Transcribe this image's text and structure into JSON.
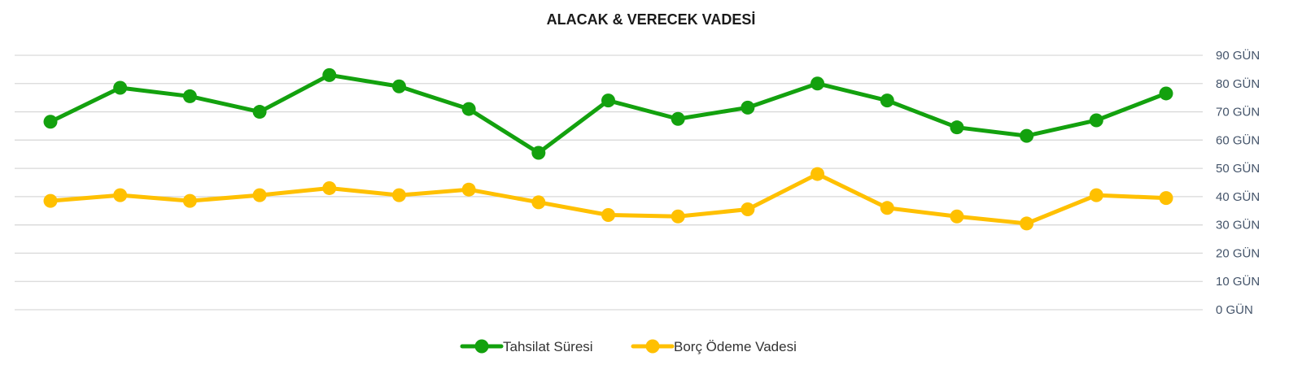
{
  "chart_data": {
    "type": "line",
    "title": "ALACAK & VERECEK VADESİ",
    "xlabel": "",
    "ylabel": "",
    "ylim": [
      0,
      90
    ],
    "y_ticks": [
      "0 GÜN",
      "10 GÜN",
      "20 GÜN",
      "30 GÜN",
      "40 GÜN",
      "50 GÜN",
      "60 GÜN",
      "70 GÜN",
      "80 GÜN",
      "90 GÜN"
    ],
    "y_axis_position": "right",
    "grid": true,
    "legend_position": "bottom",
    "series": [
      {
        "name": "Tahsilat Süresi",
        "color": "#13a10e",
        "values": [
          66.5,
          78.5,
          75.5,
          70,
          83,
          79,
          71,
          55.5,
          74,
          67.5,
          71.5,
          80,
          74,
          64.5,
          61.5,
          67,
          76.5
        ]
      },
      {
        "name": "Borç Ödeme Vadesi",
        "color": "#ffc000",
        "values": [
          38.5,
          40.5,
          38.5,
          40.5,
          43,
          40.5,
          42.5,
          38,
          33.5,
          33,
          35.5,
          48,
          36,
          33,
          30.5,
          40.5,
          39.5
        ]
      }
    ]
  }
}
